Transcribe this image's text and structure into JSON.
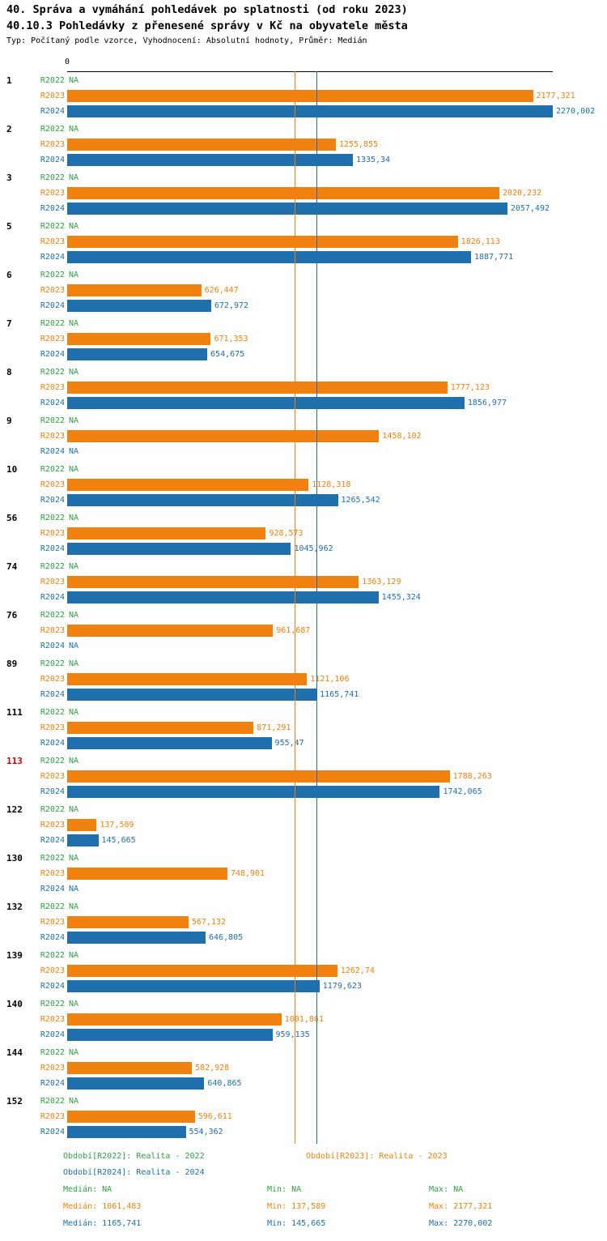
{
  "header": {
    "title1": "40. Správa a vymáhání pohledávek po splatnosti (od roku 2023)",
    "title2": "40.10.3 Pohledávky z přenesené správy v Kč na obyvatele města",
    "subtitle": "Typ: Počítaný podle vzorce, Vyhodnocení: Absolutní hodnoty, Průměr: Medián"
  },
  "axis": {
    "zero_label": "0"
  },
  "colors": {
    "R2022": "#2f9e44",
    "R2023": "#f0810f",
    "R2024": "#1f6fad",
    "highlight": "#cc0000",
    "axis": "#000000"
  },
  "chart_data": {
    "type": "bar",
    "orientation": "horizontal",
    "title": "40.10.3 Pohledávky z přenesené správy v Kč na obyvatele města",
    "xlabel": "Kč na obyvatele",
    "xlim": [
      0,
      2270.002
    ],
    "grid": false,
    "series_names": [
      "R2022",
      "R2023",
      "R2024"
    ],
    "groups": [
      {
        "id": "1",
        "highlight": false,
        "rows": [
          {
            "series": "R2022",
            "value": null,
            "label": "NA"
          },
          {
            "series": "R2023",
            "value": 2177.321,
            "label": "2177,321"
          },
          {
            "series": "R2024",
            "value": 2270.002,
            "label": "2270,002"
          }
        ]
      },
      {
        "id": "2",
        "highlight": false,
        "rows": [
          {
            "series": "R2022",
            "value": null,
            "label": "NA"
          },
          {
            "series": "R2023",
            "value": 1255.855,
            "label": "1255,855"
          },
          {
            "series": "R2024",
            "value": 1335.34,
            "label": "1335,34"
          }
        ]
      },
      {
        "id": "3",
        "highlight": false,
        "rows": [
          {
            "series": "R2022",
            "value": null,
            "label": "NA"
          },
          {
            "series": "R2023",
            "value": 2020.232,
            "label": "2020,232"
          },
          {
            "series": "R2024",
            "value": 2057.492,
            "label": "2057,492"
          }
        ]
      },
      {
        "id": "5",
        "highlight": false,
        "rows": [
          {
            "series": "R2022",
            "value": null,
            "label": "NA"
          },
          {
            "series": "R2023",
            "value": 1826.113,
            "label": "1826,113"
          },
          {
            "series": "R2024",
            "value": 1887.771,
            "label": "1887,771"
          }
        ]
      },
      {
        "id": "6",
        "highlight": false,
        "rows": [
          {
            "series": "R2022",
            "value": null,
            "label": "NA"
          },
          {
            "series": "R2023",
            "value": 626.447,
            "label": "626,447"
          },
          {
            "series": "R2024",
            "value": 672.972,
            "label": "672,972"
          }
        ]
      },
      {
        "id": "7",
        "highlight": false,
        "rows": [
          {
            "series": "R2022",
            "value": null,
            "label": "NA"
          },
          {
            "series": "R2023",
            "value": 671.353,
            "label": "671,353"
          },
          {
            "series": "R2024",
            "value": 654.675,
            "label": "654,675"
          }
        ]
      },
      {
        "id": "8",
        "highlight": false,
        "rows": [
          {
            "series": "R2022",
            "value": null,
            "label": "NA"
          },
          {
            "series": "R2023",
            "value": 1777.123,
            "label": "1777,123"
          },
          {
            "series": "R2024",
            "value": 1856.977,
            "label": "1856,977"
          }
        ]
      },
      {
        "id": "9",
        "highlight": false,
        "rows": [
          {
            "series": "R2022",
            "value": null,
            "label": "NA"
          },
          {
            "series": "R2023",
            "value": 1458.102,
            "label": "1458,102"
          },
          {
            "series": "R2024",
            "value": null,
            "label": "NA"
          }
        ]
      },
      {
        "id": "10",
        "highlight": false,
        "rows": [
          {
            "series": "R2022",
            "value": null,
            "label": "NA"
          },
          {
            "series": "R2023",
            "value": 1128.318,
            "label": "1128,318"
          },
          {
            "series": "R2024",
            "value": 1265.542,
            "label": "1265,542"
          }
        ]
      },
      {
        "id": "56",
        "highlight": false,
        "rows": [
          {
            "series": "R2022",
            "value": null,
            "label": "NA"
          },
          {
            "series": "R2023",
            "value": 928.573,
            "label": "928,573"
          },
          {
            "series": "R2024",
            "value": 1045.962,
            "label": "1045,962"
          }
        ]
      },
      {
        "id": "74",
        "highlight": false,
        "rows": [
          {
            "series": "R2022",
            "value": null,
            "label": "NA"
          },
          {
            "series": "R2023",
            "value": 1363.129,
            "label": "1363,129"
          },
          {
            "series": "R2024",
            "value": 1455.324,
            "label": "1455,324"
          }
        ]
      },
      {
        "id": "76",
        "highlight": false,
        "rows": [
          {
            "series": "R2022",
            "value": null,
            "label": "NA"
          },
          {
            "series": "R2023",
            "value": 961.687,
            "label": "961,687"
          },
          {
            "series": "R2024",
            "value": null,
            "label": "NA"
          }
        ]
      },
      {
        "id": "89",
        "highlight": false,
        "rows": [
          {
            "series": "R2022",
            "value": null,
            "label": "NA"
          },
          {
            "series": "R2023",
            "value": 1121.106,
            "label": "1121,106"
          },
          {
            "series": "R2024",
            "value": 1165.741,
            "label": "1165,741"
          }
        ]
      },
      {
        "id": "111",
        "highlight": false,
        "rows": [
          {
            "series": "R2022",
            "value": null,
            "label": "NA"
          },
          {
            "series": "R2023",
            "value": 871.291,
            "label": "871,291"
          },
          {
            "series": "R2024",
            "value": 955.47,
            "label": "955,47"
          }
        ]
      },
      {
        "id": "113",
        "highlight": true,
        "rows": [
          {
            "series": "R2022",
            "value": null,
            "label": "NA"
          },
          {
            "series": "R2023",
            "value": 1788.263,
            "label": "1788,263"
          },
          {
            "series": "R2024",
            "value": 1742.065,
            "label": "1742,065"
          }
        ]
      },
      {
        "id": "122",
        "highlight": false,
        "rows": [
          {
            "series": "R2022",
            "value": null,
            "label": "NA"
          },
          {
            "series": "R2023",
            "value": 137.589,
            "label": "137,589"
          },
          {
            "series": "R2024",
            "value": 145.665,
            "label": "145,665"
          }
        ]
      },
      {
        "id": "130",
        "highlight": false,
        "rows": [
          {
            "series": "R2022",
            "value": null,
            "label": "NA"
          },
          {
            "series": "R2023",
            "value": 748.901,
            "label": "748,901"
          },
          {
            "series": "R2024",
            "value": null,
            "label": "NA"
          }
        ]
      },
      {
        "id": "132",
        "highlight": false,
        "rows": [
          {
            "series": "R2022",
            "value": null,
            "label": "NA"
          },
          {
            "series": "R2023",
            "value": 567.132,
            "label": "567,132"
          },
          {
            "series": "R2024",
            "value": 646.805,
            "label": "646,805"
          }
        ]
      },
      {
        "id": "139",
        "highlight": false,
        "rows": [
          {
            "series": "R2022",
            "value": null,
            "label": "NA"
          },
          {
            "series": "R2023",
            "value": 1262.74,
            "label": "1262,74"
          },
          {
            "series": "R2024",
            "value": 1179.623,
            "label": "1179,623"
          }
        ]
      },
      {
        "id": "140",
        "highlight": false,
        "rows": [
          {
            "series": "R2022",
            "value": null,
            "label": "NA"
          },
          {
            "series": "R2023",
            "value": 1001.861,
            "label": "1001,861"
          },
          {
            "series": "R2024",
            "value": 959.135,
            "label": "959,135"
          }
        ]
      },
      {
        "id": "144",
        "highlight": false,
        "rows": [
          {
            "series": "R2022",
            "value": null,
            "label": "NA"
          },
          {
            "series": "R2023",
            "value": 582.928,
            "label": "582,928"
          },
          {
            "series": "R2024",
            "value": 640.865,
            "label": "640,865"
          }
        ]
      },
      {
        "id": "152",
        "highlight": false,
        "rows": [
          {
            "series": "R2022",
            "value": null,
            "label": "NA"
          },
          {
            "series": "R2023",
            "value": 596.611,
            "label": "596,611"
          },
          {
            "series": "R2024",
            "value": 554.362,
            "label": "554,362"
          }
        ]
      }
    ],
    "medians": [
      {
        "series": "R2023",
        "value": 1061.483
      },
      {
        "series": "R2024",
        "value": 1165.741
      }
    ]
  },
  "legend": {
    "items": [
      {
        "series": "R2022",
        "text": "Období[R2022]: Realita - 2022"
      },
      {
        "series": "R2023",
        "text": "Období[R2023]: Realita - 2023"
      },
      {
        "series": "R2024",
        "text": "Období[R2024]: Realita - 2024"
      }
    ]
  },
  "stats": [
    {
      "series": "R2022",
      "median": "Medián: NA",
      "min": "Min: NA",
      "max": "Max: NA"
    },
    {
      "series": "R2023",
      "median": "Medián: 1061,483",
      "min": "Min: 137,589",
      "max": "Max: 2177,321"
    },
    {
      "series": "R2024",
      "median": "Medián: 1165,741",
      "min": "Min: 145,665",
      "max": "Max: 2270,002"
    }
  ]
}
